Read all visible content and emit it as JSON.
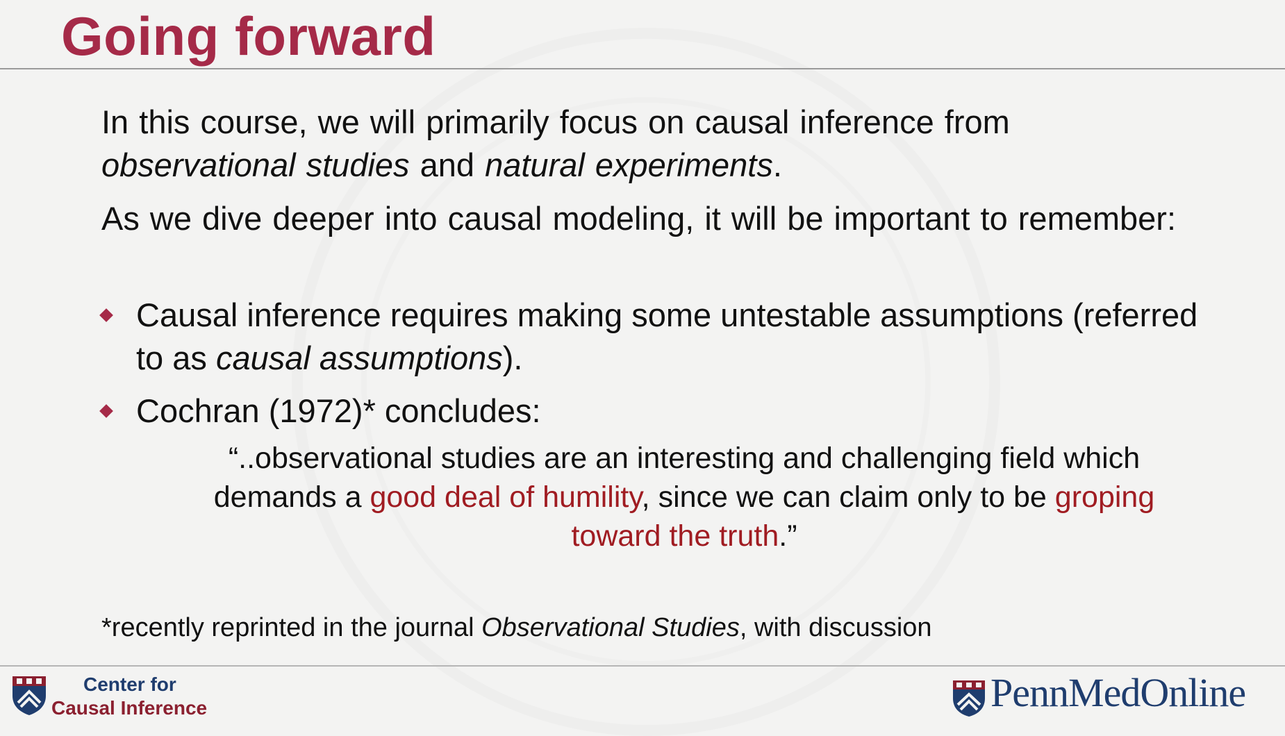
{
  "slide": {
    "title": "Going forward",
    "para1": {
      "t1": "In this course, we will primarily focus on causal inference from ",
      "i1": "observational studies",
      "t2": " and ",
      "i2": "natural experiments",
      "t3": "."
    },
    "para2": "As we dive deeper into causal modeling, it will be important to remember:",
    "bullets": [
      {
        "t1": "Causal inference requires making some untestable assumptions (referred to as ",
        "i1": "causal assumptions",
        "t2": ")."
      },
      {
        "t1": "Cochran (1972)* concludes:"
      }
    ],
    "quote": {
      "t1": "“..observational studies are an interesting and challenging field which demands a ",
      "h1": "good deal of humility",
      "t2": ", since we can claim only to be ",
      "h2": "groping toward the truth",
      "t3": ".”"
    },
    "footnote": {
      "t1": "*recently reprinted in the journal ",
      "i1": "Observational Studies",
      "t2": ", with discussion"
    }
  },
  "footer": {
    "left_logo": {
      "line1": "Center for",
      "line2": "Causal Inference"
    },
    "right_logo": {
      "text": "PennMedOnline"
    }
  },
  "colors": {
    "title": "#a52a48",
    "highlight": "#a01c22",
    "bullet": "#a52a48",
    "logo_blue": "#1f3d6e",
    "logo_red": "#8b2030"
  }
}
